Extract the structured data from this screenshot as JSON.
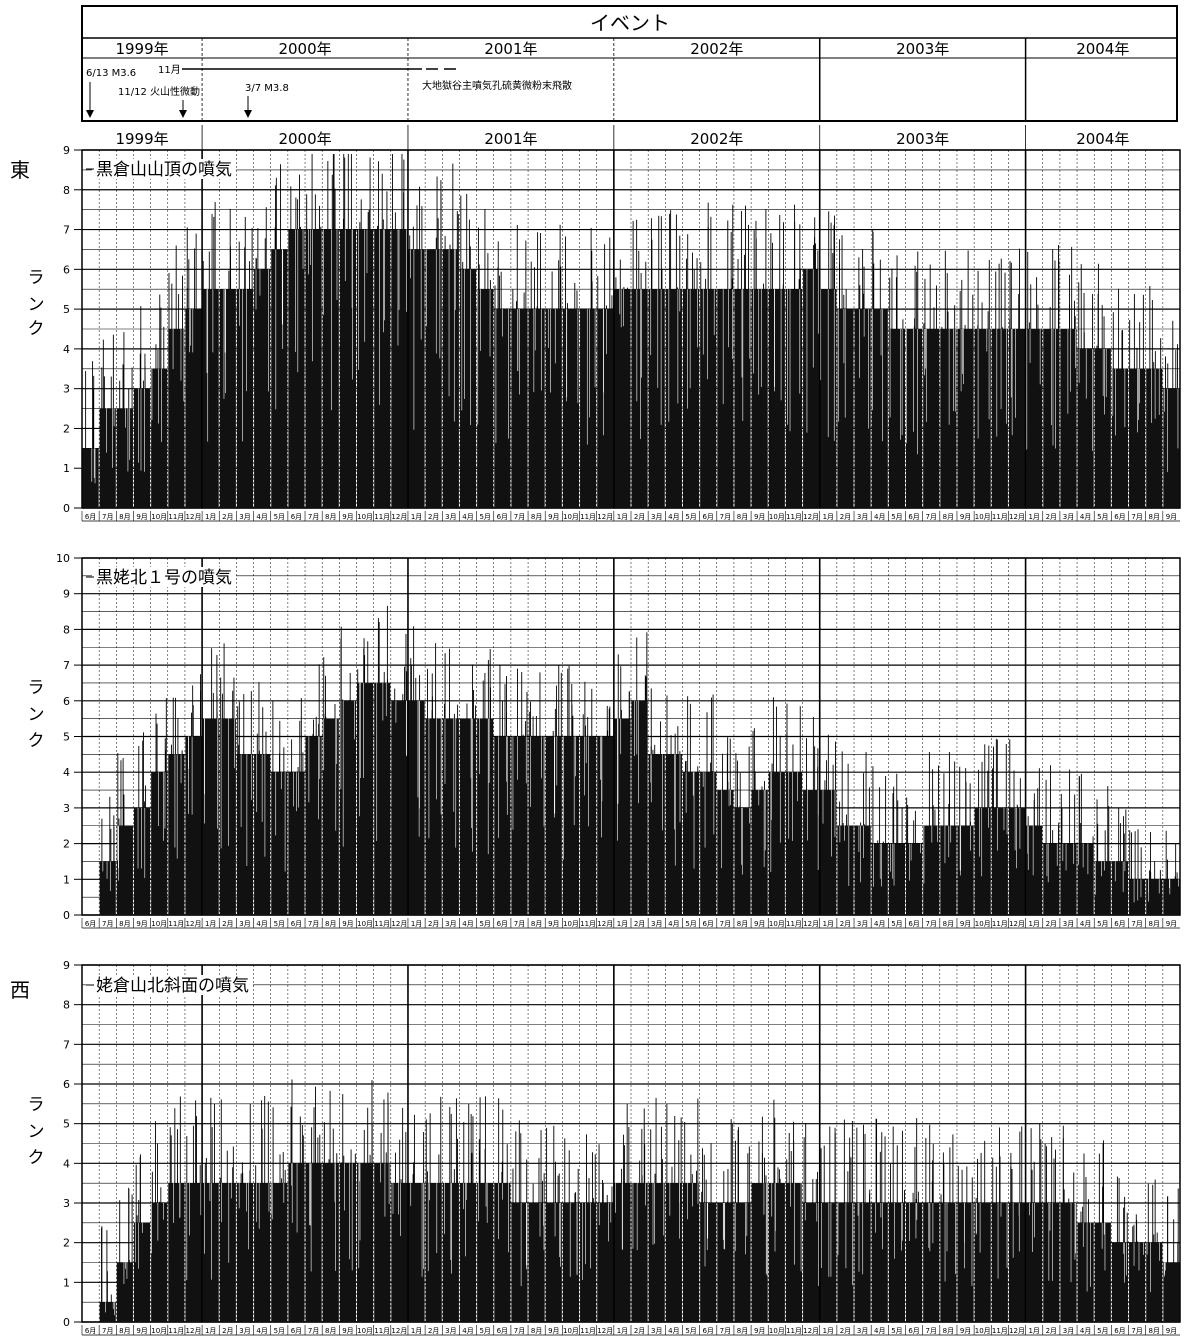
{
  "events": {
    "title": "イベント",
    "years": [
      "1999年",
      "2000年",
      "2001年",
      "2002年",
      "2003年",
      "2004年"
    ],
    "annotations": [
      {
        "text": "6/13 M3.6"
      },
      {
        "text": "11月"
      },
      {
        "text": "11/12 火山性微動"
      },
      {
        "text": "3/7 M3.8"
      },
      {
        "text": "大地獄谷主噴気孔硫黄微粉末飛散"
      }
    ]
  },
  "side_labels": {
    "east": "東",
    "west": "西"
  },
  "ylabel_chars": [
    "ラ",
    "ン",
    "ク"
  ],
  "months": [
    "6月",
    "7月",
    "8月",
    "9月",
    "10月",
    "11月",
    "12月",
    "1月",
    "2月",
    "3月",
    "4月",
    "5月",
    "6月",
    "7月",
    "8月",
    "9月",
    "10月",
    "11月",
    "12月",
    "1月",
    "2月",
    "3月",
    "4月",
    "5月",
    "6月",
    "7月",
    "8月",
    "9月",
    "10月",
    "11月",
    "12月",
    "1月",
    "2月",
    "3月",
    "4月",
    "5月",
    "6月",
    "7月",
    "8月",
    "9月",
    "10月",
    "11月",
    "12月",
    "1月",
    "2月",
    "3月",
    "4月",
    "5月",
    "6月",
    "7月",
    "8月",
    "9月",
    "10月",
    "11月",
    "12月",
    "1月",
    "2月",
    "3月",
    "4月",
    "5月",
    "6月",
    "7月",
    "8月",
    "9月"
  ],
  "chart_data": [
    {
      "type": "bar",
      "title": "黒倉山山頂の噴気",
      "ylabel": "ランク",
      "ylim": [
        0,
        9
      ],
      "x_unit": "month",
      "x_range": [
        "1999-06",
        "2004-09"
      ],
      "series": [
        {
          "values": [
            1.5,
            2.5,
            2.5,
            3,
            3.5,
            4.5,
            5,
            5.5,
            5.5,
            5.5,
            6,
            6.5,
            7,
            7,
            7,
            7,
            7,
            7,
            7,
            6.5,
            6.5,
            6.5,
            6,
            5.5,
            5,
            5,
            5,
            5,
            5,
            5,
            5,
            5.5,
            5.5,
            5.5,
            5.5,
            5.5,
            5.5,
            5.5,
            5.5,
            5.5,
            5.5,
            5.5,
            6,
            5.5,
            5,
            5,
            5,
            4.5,
            4.5,
            4.5,
            4.5,
            4.5,
            4.5,
            4.5,
            4.5,
            4.5,
            4.5,
            4.5,
            4,
            4,
            3.5,
            3.5,
            3.5,
            3
          ]
        }
      ]
    },
    {
      "type": "bar",
      "title": "黒姥北１号の噴気",
      "ylabel": "ランク",
      "ylim": [
        0,
        10
      ],
      "x_unit": "month",
      "x_range": [
        "1999-06",
        "2004-09"
      ],
      "series": [
        {
          "values": [
            0,
            1.5,
            2.5,
            3,
            4,
            4.5,
            5,
            5.5,
            5.5,
            4.5,
            4.5,
            4,
            4,
            5,
            5.5,
            6,
            6.5,
            6.5,
            6,
            6,
            5.5,
            5.5,
            5.5,
            5.5,
            5,
            5,
            5,
            5,
            5,
            5,
            5,
            5.5,
            6,
            4.5,
            4.5,
            4,
            4,
            3.5,
            3,
            3.5,
            4,
            4,
            3.5,
            3.5,
            2.5,
            2.5,
            2,
            2,
            2,
            2.5,
            2.5,
            2.5,
            3,
            3,
            3,
            2.5,
            2,
            2,
            2,
            1.5,
            1.5,
            1,
            1,
            1
          ]
        }
      ]
    },
    {
      "type": "bar",
      "title": "姥倉山北斜面の噴気",
      "ylabel": "ランク",
      "ylim": [
        0,
        9
      ],
      "x_unit": "month",
      "x_range": [
        "1999-06",
        "2004-09"
      ],
      "series": [
        {
          "values": [
            0,
            0.5,
            1.5,
            2.5,
            3,
            3.5,
            3.5,
            3.5,
            3.5,
            3.5,
            3.5,
            3.5,
            4,
            4,
            4,
            4,
            4,
            4,
            3.5,
            3.5,
            3.5,
            3.5,
            3.5,
            3.5,
            3.5,
            3,
            3,
            3,
            3,
            3,
            3,
            3.5,
            3.5,
            3.5,
            3.5,
            3.5,
            3,
            3,
            3,
            3.5,
            3.5,
            3.5,
            3,
            3,
            3,
            3,
            3,
            3,
            3,
            3,
            3,
            3,
            3,
            3,
            3,
            3,
            3,
            3,
            2.5,
            2.5,
            2,
            2,
            2,
            1.5
          ]
        }
      ]
    }
  ]
}
